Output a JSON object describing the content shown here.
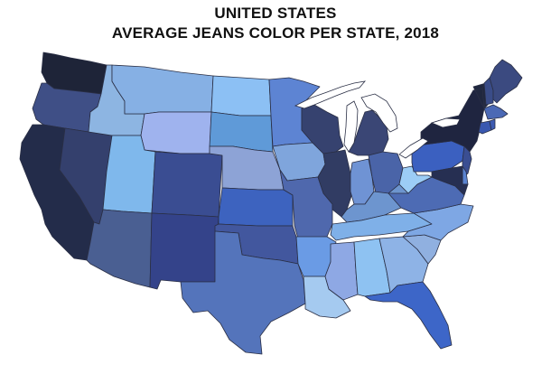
{
  "title": {
    "line1": "UNITED STATES",
    "line2": "AVERAGE JEANS COLOR PER STATE, 2018"
  },
  "legend_colors": {
    "darkest_navy": "#1e2438",
    "dark_navy": "#232c4a",
    "slate_navy": "#34406d",
    "slate_blue": "#3f4f86",
    "medium_slate": "#4a5f99",
    "royal_blue": "#3c5fb9",
    "cornflower": "#5a82cc",
    "soft_blue": "#7ca3dd",
    "light_blue": "#86b4ea",
    "sky_blue": "#7fb8ec",
    "periwinkle": "#8fa8e6",
    "pale_blue": "#a9c8ee",
    "powder_blue": "#b8d4f2"
  },
  "states": [
    {
      "id": "WA",
      "name": "Washington",
      "color": "#1e2438"
    },
    {
      "id": "OR",
      "name": "Oregon",
      "color": "#3f4f86"
    },
    {
      "id": "CA",
      "name": "California",
      "color": "#232c4a"
    },
    {
      "id": "NV",
      "name": "Nevada",
      "color": "#34406d"
    },
    {
      "id": "ID",
      "name": "Idaho",
      "color": "#8db5e2"
    },
    {
      "id": "MT",
      "name": "Montana",
      "color": "#86b0e4"
    },
    {
      "id": "WY",
      "name": "Wyoming",
      "color": "#9fb3ee"
    },
    {
      "id": "UT",
      "name": "Utah",
      "color": "#7fb8ec"
    },
    {
      "id": "AZ",
      "name": "Arizona",
      "color": "#4a5f92"
    },
    {
      "id": "CO",
      "name": "Colorado",
      "color": "#3a4d92"
    },
    {
      "id": "NM",
      "name": "New Mexico",
      "color": "#34438a"
    },
    {
      "id": "ND",
      "name": "North Dakota",
      "color": "#8cc0f4"
    },
    {
      "id": "SD",
      "name": "South Dakota",
      "color": "#5f9ad8"
    },
    {
      "id": "NE",
      "name": "Nebraska",
      "color": "#8da3d6"
    },
    {
      "id": "KS",
      "name": "Kansas",
      "color": "#3d63bf"
    },
    {
      "id": "OK",
      "name": "Oklahoma",
      "color": "#42579e"
    },
    {
      "id": "TX",
      "name": "Texas",
      "color": "#5474bb"
    },
    {
      "id": "MN",
      "name": "Minnesota",
      "color": "#5d84d3"
    },
    {
      "id": "IA",
      "name": "Iowa",
      "color": "#7fa5dc"
    },
    {
      "id": "MO",
      "name": "Missouri",
      "color": "#4f68ad"
    },
    {
      "id": "AR",
      "name": "Arkansas",
      "color": "#6a9be5"
    },
    {
      "id": "LA",
      "name": "Louisiana",
      "color": "#a5caf0"
    },
    {
      "id": "WI",
      "name": "Wisconsin",
      "color": "#36426f"
    },
    {
      "id": "IL",
      "name": "Illinois",
      "color": "#313c63"
    },
    {
      "id": "MI",
      "name": "Michigan",
      "color": "#3a4675"
    },
    {
      "id": "IN",
      "name": "Indiana",
      "color": "#6f93d4"
    },
    {
      "id": "OH",
      "name": "Ohio",
      "color": "#4a64a8"
    },
    {
      "id": "KY",
      "name": "Kentucky",
      "color": "#6d95cf"
    },
    {
      "id": "TN",
      "name": "Tennessee",
      "color": "#7fb0e8"
    },
    {
      "id": "MS",
      "name": "Mississippi",
      "color": "#8ea8e4"
    },
    {
      "id": "AL",
      "name": "Alabama",
      "color": "#8ec2f2"
    },
    {
      "id": "GA",
      "name": "Georgia",
      "color": "#8eb3e6"
    },
    {
      "id": "FL",
      "name": "Florida",
      "color": "#3d66c8"
    },
    {
      "id": "SC",
      "name": "South Carolina",
      "color": "#90b0e0"
    },
    {
      "id": "NC",
      "name": "North Carolina",
      "color": "#7ea7e4"
    },
    {
      "id": "VA",
      "name": "Virginia",
      "color": "#4d6bb4"
    },
    {
      "id": "WV",
      "name": "West Virginia",
      "color": "#9ccdf6"
    },
    {
      "id": "PA",
      "name": "Pennsylvania",
      "color": "#3b60c0"
    },
    {
      "id": "NY",
      "name": "New York",
      "color": "#1f2540"
    },
    {
      "id": "VT",
      "name": "Vermont",
      "color": "#20273f"
    },
    {
      "id": "NH",
      "name": "New Hampshire",
      "color": "#3a4c88"
    },
    {
      "id": "ME",
      "name": "Maine",
      "color": "#3b4a80"
    },
    {
      "id": "MA",
      "name": "Massachusetts",
      "color": "#4b69b5"
    },
    {
      "id": "CT",
      "name": "Connecticut",
      "color": "#3a58b0"
    },
    {
      "id": "RI",
      "name": "Rhode Island",
      "color": "#3d5bb2"
    },
    {
      "id": "NJ",
      "name": "New Jersey",
      "color": "#3a4e92"
    },
    {
      "id": "DE",
      "name": "Delaware",
      "color": "#5a83d0"
    },
    {
      "id": "MD",
      "name": "Maryland",
      "color": "#262f52"
    }
  ]
}
